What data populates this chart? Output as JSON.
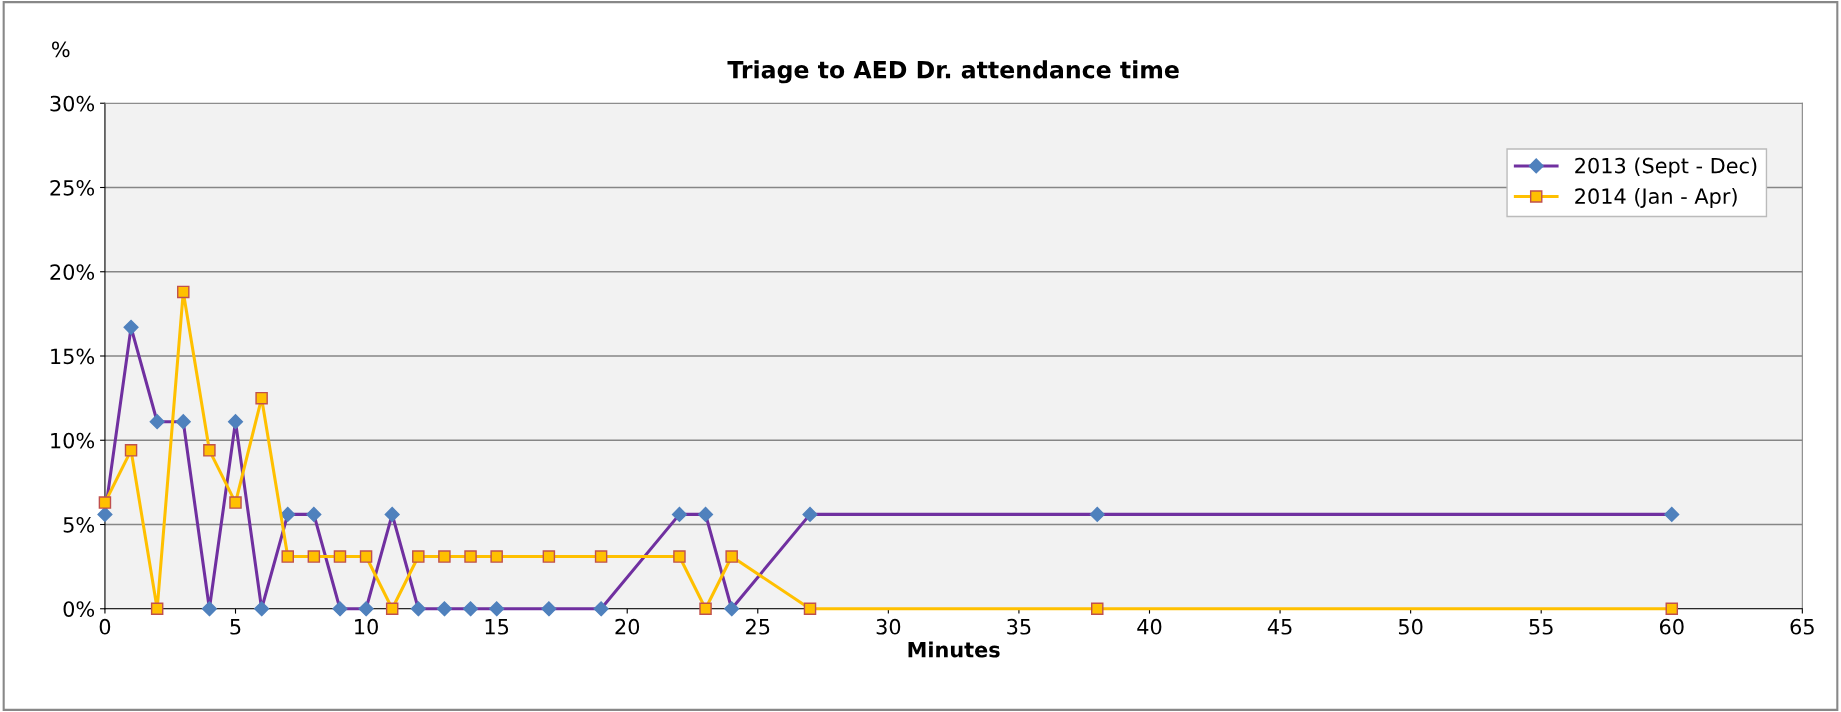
{
  "chart_data": {
    "type": "line",
    "title": "Triage to AED Dr. attendance time",
    "xlabel": "Minutes",
    "ylabel": "%",
    "xlim": [
      0,
      65
    ],
    "xticks": [
      0,
      5,
      10,
      15,
      20,
      25,
      30,
      35,
      40,
      45,
      50,
      55,
      60,
      65
    ],
    "ylim": [
      0,
      30
    ],
    "yticks": [
      {
        "value": 0,
        "label": "0%"
      },
      {
        "value": 5,
        "label": "5%"
      },
      {
        "value": 10,
        "label": "10%"
      },
      {
        "value": 15,
        "label": "15%"
      },
      {
        "value": 20,
        "label": "20%"
      },
      {
        "value": 25,
        "label": "25%"
      },
      {
        "value": 30,
        "label": "30%"
      }
    ],
    "grid": "y",
    "legend": "top right",
    "x": [
      0,
      1,
      2,
      3,
      4,
      5,
      6,
      7,
      8,
      9,
      10,
      11,
      12,
      13,
      14,
      15,
      17,
      19,
      22,
      23,
      24,
      27,
      38,
      60
    ],
    "series": [
      {
        "name": "2013 (Sept - Dec)",
        "color": "#7030a0",
        "marker": "diamond",
        "values": [
          5.6,
          16.7,
          11.1,
          11.1,
          0,
          11.1,
          0,
          5.6,
          5.6,
          0,
          0,
          5.6,
          0,
          0,
          0,
          0,
          0,
          0,
          5.6,
          5.6,
          0,
          5.6,
          5.6,
          5.6
        ]
      },
      {
        "name": "2014 (Jan - Apr)",
        "color": "#ffc000",
        "marker": "square",
        "values": [
          6.3,
          9.4,
          0,
          18.8,
          9.4,
          6.3,
          12.5,
          3.1,
          3.1,
          3.1,
          3.1,
          0,
          3.1,
          3.1,
          3.1,
          3.1,
          3.1,
          3.1,
          3.1,
          0,
          3.1,
          0,
          0,
          0
        ]
      }
    ]
  }
}
